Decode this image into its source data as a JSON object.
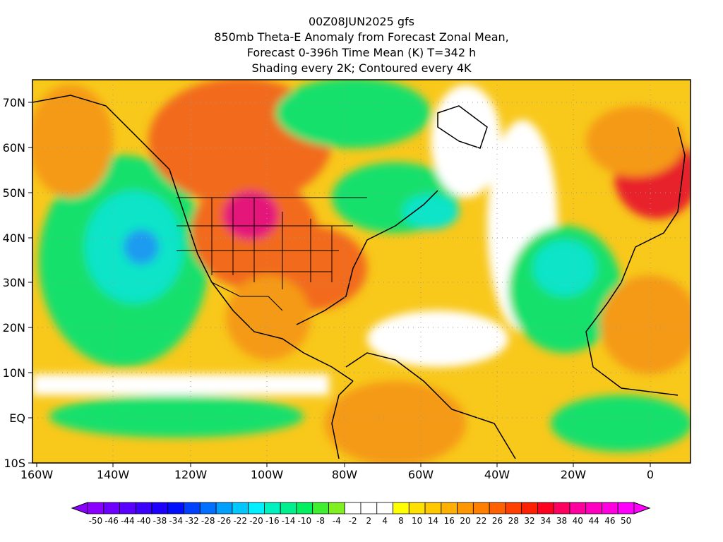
{
  "titles": {
    "line1": "00Z08JUN2025 gfs",
    "line2": "850mb Theta-E Anomaly from Forecast Zonal Mean,",
    "line3": "Forecast 0-396h Time Mean (K) T=342 h",
    "line4": "Shading every 2K; Contoured every 4K"
  },
  "map": {
    "lon_range": [
      -160,
      10
    ],
    "lat_range": [
      -10,
      75
    ],
    "lat_ticks": [
      "70N",
      "60N",
      "50N",
      "40N",
      "30N",
      "20N",
      "10N",
      "EQ",
      "10S"
    ],
    "lon_ticks": [
      "160W",
      "140W",
      "120W",
      "100W",
      "80W",
      "60W",
      "40W",
      "20W",
      "0"
    ],
    "colors": {
      "strong_warm": "#e8222c",
      "warm": "#f26a1a",
      "mid_warm": "#f59a12",
      "light_warm": "#f8c81b",
      "pale_warm": "#fdf35a",
      "neutral": "#ffffff",
      "light_cool": "#5ce839",
      "cool": "#12e06c",
      "mid_cool": "#10e4c8",
      "strong_cool": "#1c9bf0",
      "magenta": "#e4127a"
    }
  },
  "colorbar": {
    "labels": [
      "-50",
      "-46",
      "-44",
      "-40",
      "-38",
      "-34",
      "-32",
      "-28",
      "-26",
      "-22",
      "-20",
      "-16",
      "-14",
      "-10",
      "-8",
      "-4",
      "-2",
      "2",
      "4",
      "8",
      "10",
      "14",
      "16",
      "20",
      "22",
      "26",
      "28",
      "32",
      "34",
      "38",
      "40",
      "44",
      "46",
      "50"
    ],
    "colors": [
      "#8b00ff",
      "#6e00ff",
      "#5a00ff",
      "#3c00ff",
      "#1e00ff",
      "#0010ff",
      "#0040ff",
      "#0070ff",
      "#00a0ff",
      "#00c8ff",
      "#00f0ff",
      "#00f0c0",
      "#00f090",
      "#00f060",
      "#40f030",
      "#80f020",
      "#ffffff",
      "#ffffff",
      "#ffffff",
      "#ffff00",
      "#ffe000",
      "#ffc800",
      "#ffb000",
      "#ff9800",
      "#ff8000",
      "#ff6000",
      "#ff4000",
      "#ff2000",
      "#ff0020",
      "#ff0060",
      "#ff00a0",
      "#ff00c0",
      "#ff00e0",
      "#ff00ff"
    ]
  }
}
